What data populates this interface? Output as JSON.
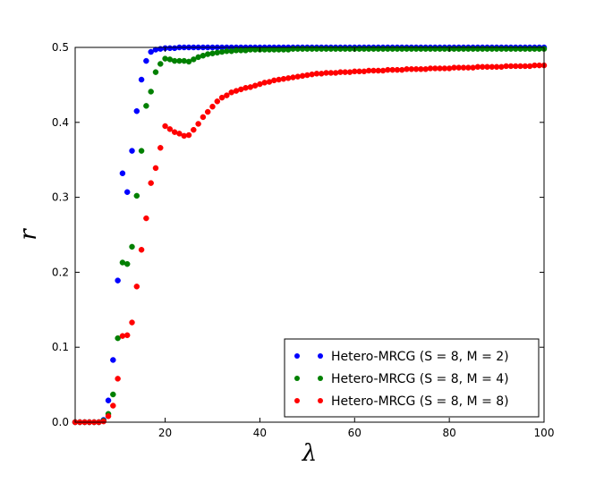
{
  "chart_data": {
    "type": "scatter",
    "xlabel": "λ",
    "ylabel": "r",
    "xlim": [
      1,
      100
    ],
    "ylim": [
      0,
      0.5
    ],
    "x_ticks": [
      20,
      40,
      60,
      80,
      100
    ],
    "y_ticks": [
      0.0,
      0.1,
      0.2,
      0.3,
      0.4,
      0.5
    ],
    "x_tick_labels": [
      "20",
      "40",
      "60",
      "80",
      "100"
    ],
    "y_tick_labels": [
      "0.0",
      "0.1",
      "0.2",
      "0.3",
      "0.4",
      "0.5"
    ],
    "grid": false,
    "legend_position": "bottom-right",
    "series": [
      {
        "name": "Hetero-MRCG (S = 8, M = 2)",
        "color": "#0000ff",
        "x": [
          1,
          2,
          3,
          4,
          5,
          6,
          7,
          8,
          9,
          10,
          11,
          12,
          13,
          14,
          15,
          16,
          17,
          18,
          19,
          20,
          21,
          22,
          23,
          24,
          25,
          26,
          27,
          28,
          29,
          30,
          31,
          32,
          33,
          34,
          35,
          36,
          37,
          38,
          39,
          40,
          41,
          42,
          43,
          44,
          45,
          46,
          47,
          48,
          49,
          50,
          51,
          52,
          53,
          54,
          55,
          56,
          57,
          58,
          59,
          60,
          61,
          62,
          63,
          64,
          65,
          66,
          67,
          68,
          69,
          70,
          71,
          72,
          73,
          74,
          75,
          76,
          77,
          78,
          79,
          80,
          81,
          82,
          83,
          84,
          85,
          86,
          87,
          88,
          89,
          90,
          91,
          92,
          93,
          94,
          95,
          96,
          97,
          98,
          99,
          100
        ],
        "y": [
          0,
          0,
          0,
          0,
          0,
          0,
          0.003,
          0.029,
          0.083,
          0.189,
          0.332,
          0.307,
          0.362,
          0.415,
          0.457,
          0.482,
          0.494,
          0.497,
          0.498,
          0.499,
          0.499,
          0.499,
          0.5,
          0.5,
          0.5,
          0.5,
          0.5,
          0.5,
          0.5,
          0.5,
          0.5,
          0.5,
          0.5,
          0.5,
          0.5,
          0.5,
          0.5,
          0.5,
          0.5,
          0.5,
          0.5,
          0.5,
          0.5,
          0.5,
          0.5,
          0.5,
          0.5,
          0.5,
          0.5,
          0.5,
          0.5,
          0.5,
          0.5,
          0.5,
          0.5,
          0.5,
          0.5,
          0.5,
          0.5,
          0.5,
          0.5,
          0.5,
          0.5,
          0.5,
          0.5,
          0.5,
          0.5,
          0.5,
          0.5,
          0.5,
          0.5,
          0.5,
          0.5,
          0.5,
          0.5,
          0.5,
          0.5,
          0.5,
          0.5,
          0.5,
          0.5,
          0.5,
          0.5,
          0.5,
          0.5,
          0.5,
          0.5,
          0.5,
          0.5,
          0.5,
          0.5,
          0.5,
          0.5,
          0.5,
          0.5,
          0.5,
          0.5,
          0.5,
          0.5,
          0.5
        ]
      },
      {
        "name": "Hetero-MRCG (S = 8, M = 4)",
        "color": "#008000",
        "x": [
          1,
          2,
          3,
          4,
          5,
          6,
          7,
          8,
          9,
          10,
          11,
          12,
          13,
          14,
          15,
          16,
          17,
          18,
          19,
          20,
          21,
          22,
          23,
          24,
          25,
          26,
          27,
          28,
          29,
          30,
          31,
          32,
          33,
          34,
          35,
          36,
          37,
          38,
          39,
          40,
          41,
          42,
          43,
          44,
          45,
          46,
          47,
          48,
          49,
          50,
          51,
          52,
          53,
          54,
          55,
          56,
          57,
          58,
          59,
          60,
          61,
          62,
          63,
          64,
          65,
          66,
          67,
          68,
          69,
          70,
          71,
          72,
          73,
          74,
          75,
          76,
          77,
          78,
          79,
          80,
          81,
          82,
          83,
          84,
          85,
          86,
          87,
          88,
          89,
          90,
          91,
          92,
          93,
          94,
          95,
          96,
          97,
          98,
          99,
          100
        ],
        "y": [
          0,
          0,
          0,
          0,
          0,
          0,
          0.002,
          0.011,
          0.037,
          0.112,
          0.213,
          0.211,
          0.234,
          0.302,
          0.362,
          0.422,
          0.441,
          0.467,
          0.478,
          0.485,
          0.484,
          0.482,
          0.482,
          0.482,
          0.481,
          0.484,
          0.487,
          0.489,
          0.491,
          0.492,
          0.493,
          0.494,
          0.495,
          0.495,
          0.496,
          0.496,
          0.496,
          0.497,
          0.497,
          0.497,
          0.497,
          0.497,
          0.497,
          0.497,
          0.497,
          0.497,
          0.498,
          0.498,
          0.498,
          0.498,
          0.498,
          0.498,
          0.498,
          0.498,
          0.498,
          0.498,
          0.498,
          0.498,
          0.498,
          0.498,
          0.498,
          0.498,
          0.498,
          0.498,
          0.498,
          0.498,
          0.498,
          0.498,
          0.498,
          0.498,
          0.498,
          0.498,
          0.498,
          0.498,
          0.498,
          0.498,
          0.498,
          0.498,
          0.498,
          0.498,
          0.498,
          0.498,
          0.498,
          0.498,
          0.498,
          0.498,
          0.498,
          0.498,
          0.498,
          0.498,
          0.498,
          0.498,
          0.498,
          0.498,
          0.498,
          0.498,
          0.498,
          0.498,
          0.498,
          0.498
        ]
      },
      {
        "name": "Hetero-MRCG (S = 8, M = 8)",
        "color": "#ff0000",
        "x": [
          1,
          2,
          3,
          4,
          5,
          6,
          7,
          8,
          9,
          10,
          11,
          12,
          13,
          14,
          15,
          16,
          17,
          18,
          19,
          20,
          21,
          22,
          23,
          24,
          25,
          26,
          27,
          28,
          29,
          30,
          31,
          32,
          33,
          34,
          35,
          36,
          37,
          38,
          39,
          40,
          41,
          42,
          43,
          44,
          45,
          46,
          47,
          48,
          49,
          50,
          51,
          52,
          53,
          54,
          55,
          56,
          57,
          58,
          59,
          60,
          61,
          62,
          63,
          64,
          65,
          66,
          67,
          68,
          69,
          70,
          71,
          72,
          73,
          74,
          75,
          76,
          77,
          78,
          79,
          80,
          81,
          82,
          83,
          84,
          85,
          86,
          87,
          88,
          89,
          90,
          91,
          92,
          93,
          94,
          95,
          96,
          97,
          98,
          99,
          100
        ],
        "y": [
          0,
          0,
          0,
          0,
          0,
          0,
          0.001,
          0.008,
          0.022,
          0.058,
          0.115,
          0.116,
          0.133,
          0.181,
          0.23,
          0.272,
          0.319,
          0.339,
          0.366,
          0.395,
          0.391,
          0.387,
          0.385,
          0.382,
          0.383,
          0.39,
          0.398,
          0.407,
          0.414,
          0.421,
          0.428,
          0.433,
          0.436,
          0.44,
          0.442,
          0.444,
          0.446,
          0.447,
          0.449,
          0.451,
          0.453,
          0.454,
          0.456,
          0.457,
          0.458,
          0.459,
          0.46,
          0.461,
          0.462,
          0.463,
          0.464,
          0.465,
          0.465,
          0.466,
          0.466,
          0.466,
          0.467,
          0.467,
          0.467,
          0.468,
          0.468,
          0.468,
          0.469,
          0.469,
          0.469,
          0.469,
          0.47,
          0.47,
          0.47,
          0.47,
          0.471,
          0.471,
          0.471,
          0.471,
          0.471,
          0.472,
          0.472,
          0.472,
          0.472,
          0.472,
          0.473,
          0.473,
          0.473,
          0.473,
          0.473,
          0.474,
          0.474,
          0.474,
          0.474,
          0.474,
          0.474,
          0.475,
          0.475,
          0.475,
          0.475,
          0.475,
          0.475,
          0.476,
          0.476,
          0.476
        ]
      }
    ]
  }
}
